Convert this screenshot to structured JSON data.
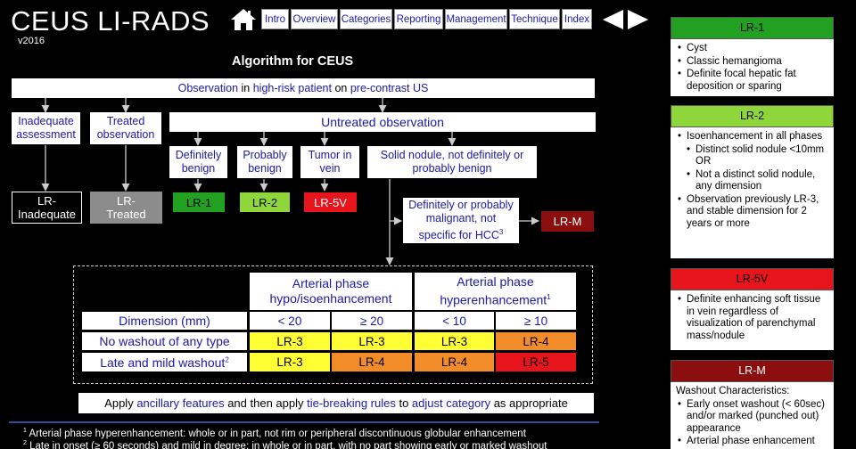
{
  "header": {
    "title": "CEUS LI-RADS",
    "version": "v2016",
    "home_icon": "home-icon",
    "nav": [
      "Intro",
      "Overview",
      "Categories",
      "Reporting",
      "Management",
      "Technique",
      "Index"
    ],
    "prev_icon": "triangle-left-icon",
    "next_icon": "triangle-right-icon"
  },
  "algorithm": {
    "title": "Algorithm for CEUS",
    "top_box": {
      "a": "Observation",
      "b": " in ",
      "c": "high-risk patient",
      "d": " on ",
      "e": "pre-contrast US"
    },
    "inadequate": "Inadequate assessment",
    "treated": "Treated observation",
    "untreated": "Untreated observation",
    "definitely_benign": "Definitely benign",
    "probably_benign": "Probably benign",
    "tumor_in_vein": "Tumor in vein",
    "solid_nodule": "Solid nodule, not definitely or probably benign",
    "malignant": "Definitely or probably malignant, not specific for HCC",
    "malignant_sup": "3",
    "lr_inadequate": "LR-Inadequate",
    "lr_treated": "LR-Treated",
    "lr1": "LR-1",
    "lr2": "LR-2",
    "lr5v": "LR-5V",
    "lrm": "LR-M"
  },
  "table": {
    "col_group1": "Arterial phase hypo/isoenhancement",
    "col_group2": "Arterial phase hyperenhancement",
    "col_group2_sup": "1",
    "row_dim": "Dimension (mm)",
    "dims": [
      "< 20",
      "≥ 20",
      "< 10",
      "≥ 10"
    ],
    "row1": "No washout of any type",
    "row1_vals": [
      "LR-3",
      "LR-3",
      "LR-3",
      "LR-4"
    ],
    "row2": "Late and mild washout",
    "row2_sup": "2",
    "row2_vals": [
      "LR-3",
      "LR-4",
      "LR-4",
      "LR-5"
    ]
  },
  "apply_bar": {
    "a": "Apply ",
    "b": "ancillary features",
    "c": " and then apply ",
    "d": "tie-breaking rules",
    "e": " to ",
    "f": "adjust category",
    "g": " as appropriate"
  },
  "footnotes": [
    {
      "num": "1",
      "text": " Arterial phase hyperenhancement: whole or in part, not rim or peripheral discontinuous globular enhancement"
    },
    {
      "num": "2",
      "text": " Late in onset (≥ 60 seconds) and mild in degree; in whole or in part, with no part showing early or marked washout"
    }
  ],
  "panels": {
    "lr1": {
      "title": "LR-1",
      "items": [
        "Cyst",
        "Classic hemangioma",
        "Definite focal hepatic fat deposition or sparing"
      ]
    },
    "lr2": {
      "title": "LR-2",
      "items": [
        "Isoenhancement in all phases",
        "Distinct solid nodule <10mm OR",
        "Not a distinct solid nodule, any dimension",
        "Observation previously LR-3, and stable dimension for 2 years or more"
      ]
    },
    "lr5v": {
      "title": "LR-5V",
      "items": [
        "Definite enhancing soft tissue in vein regardless of visualization of parenchymal mass/nodule"
      ]
    },
    "lrm": {
      "title": "LR-M",
      "intro": "Washout Characteristics:",
      "items": [
        "Early onset washout (< 60sec) and/or marked (punched out) appearance",
        "Arterial phase enhancement"
      ]
    }
  },
  "colors": {
    "lr1": "#22a022",
    "lr2": "#8fd63a",
    "lr5v": "#e8141c",
    "lrm": "#8b0f0f",
    "lr3": "#ffff33",
    "lr4": "#f28c28",
    "lr5": "#e8141c",
    "treated": "#8c8c8c"
  }
}
